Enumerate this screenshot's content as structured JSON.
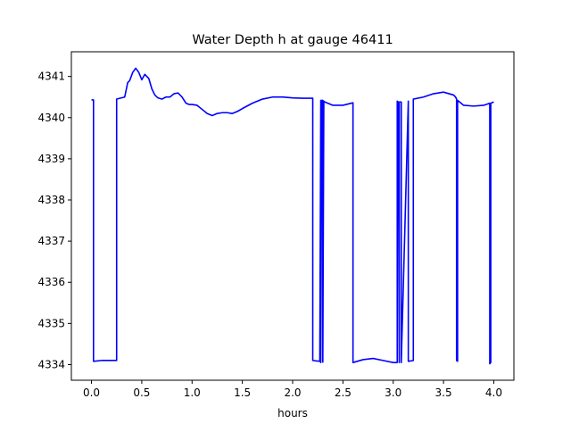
{
  "chart_data": {
    "type": "line",
    "title": "Water Depth h at gauge 46411",
    "xlabel": "hours",
    "ylabel": "",
    "xlim": [
      -0.2,
      4.2
    ],
    "ylim": [
      4333.62,
      4341.6
    ],
    "grid": false,
    "x_ticks": [
      0.0,
      0.5,
      1.0,
      1.5,
      2.0,
      2.5,
      3.0,
      3.5,
      4.0
    ],
    "x_tick_labels": [
      "0.0",
      "0.5",
      "1.0",
      "1.5",
      "2.0",
      "2.5",
      "3.0",
      "3.5",
      "4.0"
    ],
    "y_ticks": [
      4334,
      4335,
      4336,
      4337,
      4338,
      4339,
      4340,
      4341
    ],
    "y_tick_labels": [
      "4334",
      "4335",
      "4336",
      "4337",
      "4338",
      "4339",
      "4340",
      "4341"
    ],
    "series": [
      {
        "color": "#0000ff",
        "x": [
          0.0,
          0.02,
          0.02,
          0.1,
          0.25,
          0.25,
          0.33,
          0.36,
          0.38,
          0.41,
          0.44,
          0.47,
          0.5,
          0.53,
          0.57,
          0.6,
          0.63,
          0.66,
          0.7,
          0.74,
          0.78,
          0.82,
          0.86,
          0.9,
          0.94,
          0.97,
          1.0,
          1.05,
          1.1,
          1.15,
          1.2,
          1.25,
          1.3,
          1.35,
          1.4,
          1.45,
          1.5,
          1.6,
          1.7,
          1.8,
          1.9,
          2.0,
          2.1,
          2.2,
          2.2,
          2.27,
          2.28,
          2.28,
          2.29,
          2.3,
          2.3,
          2.31,
          2.32,
          2.32,
          2.4,
          2.5,
          2.6,
          2.6,
          2.7,
          2.8,
          2.9,
          3.0,
          3.04,
          3.04,
          3.05,
          3.06,
          3.06,
          3.08,
          3.08,
          3.15,
          3.15,
          3.2,
          3.2,
          3.3,
          3.4,
          3.5,
          3.6,
          3.62,
          3.63,
          3.63,
          3.64,
          3.64,
          3.7,
          3.8,
          3.9,
          3.96,
          3.96,
          3.97,
          3.97,
          4.0
        ],
        "y": [
          4340.43,
          4340.43,
          4334.08,
          4334.1,
          4334.1,
          4340.45,
          4340.5,
          4340.85,
          4340.9,
          4341.1,
          4341.2,
          4341.1,
          4340.92,
          4341.05,
          4340.95,
          4340.7,
          4340.55,
          4340.48,
          4340.45,
          4340.5,
          4340.5,
          4340.58,
          4340.6,
          4340.5,
          4340.35,
          4340.32,
          4340.32,
          4340.3,
          4340.2,
          4340.1,
          4340.05,
          4340.1,
          4340.12,
          4340.12,
          4340.1,
          4340.15,
          4340.22,
          4340.35,
          4340.45,
          4340.5,
          4340.5,
          4340.48,
          4340.47,
          4340.47,
          4334.1,
          4334.08,
          4340.42,
          4334.05,
          4340.42,
          4340.42,
          4334.06,
          4340.4,
          4340.38,
          4340.38,
          4340.3,
          4340.3,
          4340.36,
          4334.05,
          4334.12,
          4334.15,
          4334.1,
          4334.05,
          4334.05,
          4340.4,
          4340.38,
          4334.05,
          4340.38,
          4340.38,
          4334.05,
          4340.4,
          4334.08,
          4334.1,
          4340.45,
          4340.5,
          4340.58,
          4340.62,
          4340.55,
          4340.5,
          4340.45,
          4334.1,
          4334.08,
          4340.42,
          4340.3,
          4340.28,
          4340.3,
          4340.35,
          4334.02,
          4334.05,
          4340.35,
          4340.38
        ]
      }
    ]
  }
}
